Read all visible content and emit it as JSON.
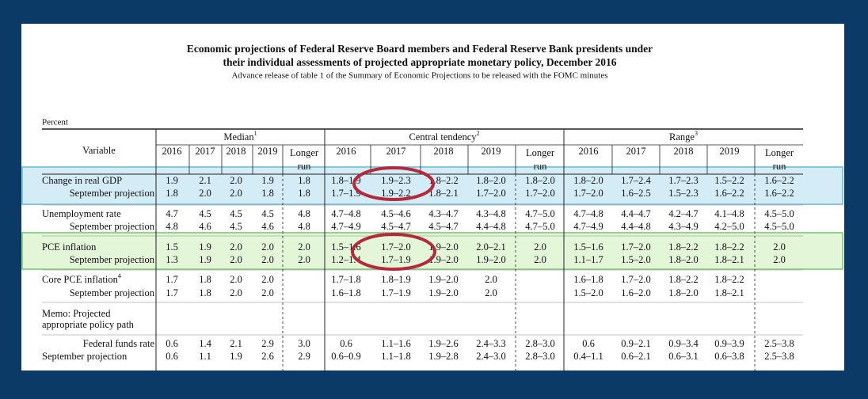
{
  "header": {
    "title_lines": [
      "Economic projections of Federal Reserve Board members and Federal Reserve Bank presidents under",
      "their individual assessments of projected appropriate monetary policy, December 2016"
    ],
    "subtitle": "Advance release of table 1 of the Summary of Economic Projections to be released with the FOMC minutes"
  },
  "table": {
    "unit": "Percent",
    "variable_header": "Variable",
    "groups": [
      {
        "name": "Median",
        "note": "1"
      },
      {
        "name": "Central tendency",
        "note": "2"
      },
      {
        "name": "Range",
        "note": "3"
      }
    ],
    "years": [
      "2016",
      "2017",
      "2018",
      "2019"
    ],
    "longer_run": [
      "Longer",
      "run"
    ],
    "rows": [
      {
        "label": "Change in real GDP",
        "cells": [
          "1.9",
          "2.1",
          "2.0",
          "1.9",
          "1.8",
          "1.8–1.9",
          "1.9–2.3",
          "1.8–2.2",
          "1.8–2.0",
          "1.8–2.0",
          "1.8–2.0",
          "1.7–2.4",
          "1.7–2.3",
          "1.5–2.2",
          "1.6–2.2"
        ]
      },
      {
        "label": "September projection",
        "cells": [
          "1.8",
          "2.0",
          "2.0",
          "1.8",
          "1.8",
          "1.7–1.9",
          "1.9–2.2",
          "1.8–2.1",
          "1.7–2.0",
          "1.7–2.0",
          "1.7–2.0",
          "1.6–2.5",
          "1.5–2.3",
          "1.6–2.2",
          "1.6–2.2"
        ]
      },
      {
        "label": "Unemployment rate",
        "cells": [
          "4.7",
          "4.5",
          "4.5",
          "4.5",
          "4.8",
          "4.7–4.8",
          "4.5–4.6",
          "4.3–4.7",
          "4.3–4.8",
          "4.7–5.0",
          "4.7–4.8",
          "4.4–4.7",
          "4.2–4.7",
          "4.1–4.8",
          "4.5–5.0"
        ]
      },
      {
        "label": "September projection",
        "cells": [
          "4.8",
          "4.6",
          "4.5",
          "4.6",
          "4.8",
          "4.7–4.9",
          "4.5–4.7",
          "4.5–4.7",
          "4.4–4.8",
          "4.7–5.0",
          "4.7–4.9",
          "4.4–4.8",
          "4.3–4.9",
          "4.2–5.0",
          "4.5–5.0"
        ]
      },
      {
        "label": "PCE inflation",
        "cells": [
          "1.5",
          "1.9",
          "2.0",
          "2.0",
          "2.0",
          "1.5–1.6",
          "1.7–2.0",
          "1.9–2.0",
          "2.0–2.1",
          "2.0",
          "1.5–1.6",
          "1.7–2.0",
          "1.8–2.2",
          "1.8–2.2",
          "2.0"
        ]
      },
      {
        "label": "September projection",
        "cells": [
          "1.3",
          "1.9",
          "2.0",
          "2.0",
          "2.0",
          "1.2–1.4",
          "1.7–1.9",
          "1.9–2.0",
          "1.9–2.0",
          "2.0",
          "1.1–1.7",
          "1.5–2.0",
          "1.8–2.0",
          "1.8–2.1",
          "2.0"
        ]
      },
      {
        "label": "Core PCE inflation",
        "note": "4",
        "cells": [
          "1.7",
          "1.8",
          "2.0",
          "2.0",
          null,
          "1.7–1.8",
          "1.8–1.9",
          "1.9–2.0",
          "2.0",
          null,
          "1.6–1.8",
          "1.7–2.0",
          "1.8–2.2",
          "1.8–2.2",
          null
        ]
      },
      {
        "label": "September projection",
        "cells": [
          "1.7",
          "1.8",
          "2.0",
          "2.0",
          null,
          "1.6–1.8",
          "1.7–1.9",
          "1.9–2.0",
          "2.0",
          null,
          "1.5–2.0",
          "1.6–2.0",
          "1.8–2.0",
          "1.8–2.1",
          null
        ]
      },
      {
        "label_lines": [
          "Memo: Projected",
          "appropriate policy path"
        ]
      },
      {
        "label": "Federal funds rate",
        "cells": [
          "0.6",
          "1.4",
          "2.1",
          "2.9",
          "3.0",
          "0.6",
          "1.1–1.6",
          "1.9–2.6",
          "2.4–3.3",
          "2.8–3.0",
          "0.6",
          "0.9–2.1",
          "0.9–3.4",
          "0.9–3.9",
          "2.5–3.8"
        ]
      },
      {
        "label": "September projection",
        "cells": [
          "0.6",
          "1.1",
          "1.9",
          "2.6",
          "2.9",
          "0.6–0.9",
          "1.1–1.8",
          "1.9–2.8",
          "2.4–3.0",
          "2.8–3.0",
          "0.4–1.1",
          "0.6–2.1",
          "0.6–3.1",
          "0.6–3.8",
          "2.5–3.8"
        ]
      }
    ]
  }
}
